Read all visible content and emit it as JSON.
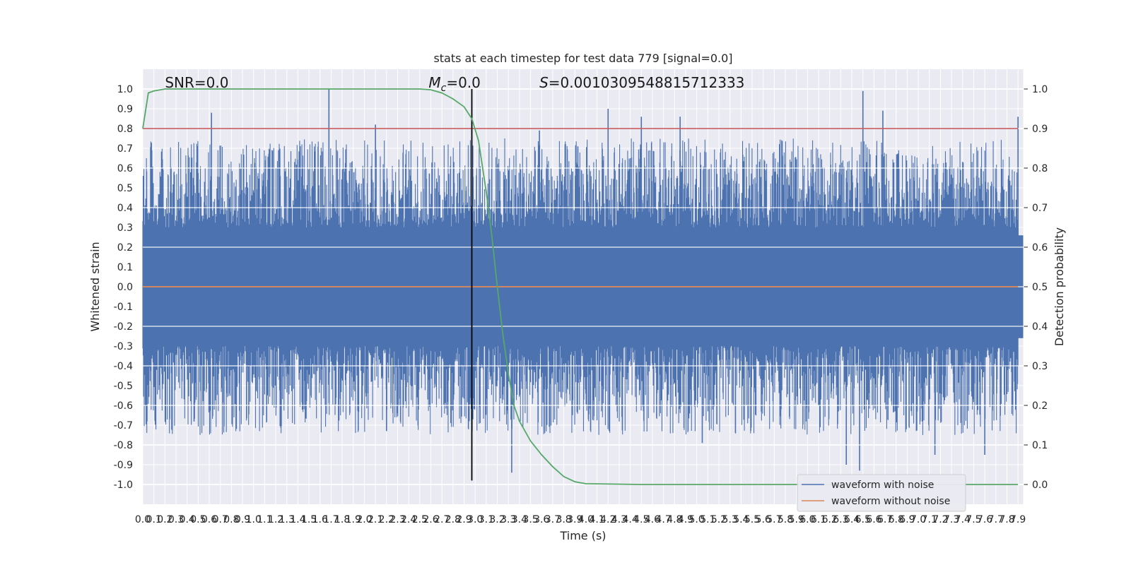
{
  "chart_data": {
    "type": "line",
    "title": "stats at each timestep for test data 779 [signal=0.0]",
    "xlabel": "Time (s)",
    "ylabel": "Whitened strain",
    "y2label": "Detection probability",
    "xlim": [
      0.0,
      7.95
    ],
    "ylim": [
      -1.1,
      1.1
    ],
    "y2lim": [
      -0.05,
      1.05
    ],
    "x_tick_step": 0.1,
    "x_tick_last": 7.9,
    "y_ticks": [
      1.0,
      0.9,
      0.8,
      0.7,
      0.6,
      0.5,
      0.4,
      0.3,
      0.2,
      0.1,
      0.0,
      -0.1,
      -0.2,
      -0.3,
      -0.4,
      -0.5,
      -0.6,
      -0.7,
      -0.8,
      -0.9,
      -1.0
    ],
    "y2_ticks": [
      1.0,
      0.9,
      0.8,
      0.7,
      0.6,
      0.5,
      0.4,
      0.3,
      0.2,
      0.1,
      0.0
    ],
    "grid": true,
    "legend_position": "bottom-right",
    "annotations": [
      {
        "text": "SNR=0.0",
        "x": 0.2
      },
      {
        "text_var": "M",
        "text_sub": "c",
        "text_rest": "=0.0",
        "x": 2.58
      },
      {
        "text_var": "S",
        "text_rest": "=0.001030954881571233 3",
        "x": 3.58
      }
    ],
    "vertical_marker": {
      "x": 2.97,
      "y_from": -0.98,
      "y_to": 1.0,
      "color": "#000000"
    },
    "threshold_line": {
      "y2": 0.9,
      "color": "#c44e52"
    },
    "series": [
      {
        "name": "waveform with noise",
        "color": "#4c72b0",
        "kind": "noise",
        "upper_typical": 0.3,
        "lower_typical": -0.3,
        "peaks_up": [
          [
            0.62,
            0.88
          ],
          [
            1.68,
            1.0
          ],
          [
            2.1,
            0.82
          ],
          [
            3.58,
            0.79
          ],
          [
            4.2,
            0.9
          ],
          [
            4.5,
            0.86
          ],
          [
            4.85,
            0.86
          ],
          [
            6.5,
            0.99
          ],
          [
            6.68,
            0.89
          ],
          [
            7.9,
            0.86
          ]
        ],
        "peaks_down": [
          [
            3.33,
            -0.94
          ],
          [
            6.35,
            -0.9
          ],
          [
            6.47,
            -0.93
          ],
          [
            7.15,
            -0.85
          ],
          [
            7.6,
            -0.85
          ],
          [
            5.05,
            -0.79
          ],
          [
            2.2,
            -0.73
          ]
        ]
      },
      {
        "name": "waveform without noise",
        "color": "#dd8452",
        "values_const": 0.0
      },
      {
        "name": "detection probability",
        "color": "#55a868",
        "axis": "right",
        "x": [
          0.0,
          0.05,
          0.1,
          0.2,
          0.5,
          1.0,
          1.5,
          2.0,
          2.5,
          2.6,
          2.7,
          2.8,
          2.9,
          2.97,
          3.03,
          3.1,
          3.15,
          3.2,
          3.25,
          3.3,
          3.35,
          3.4,
          3.5,
          3.6,
          3.7,
          3.8,
          3.9,
          4.0,
          4.5,
          5.0,
          6.0,
          7.0,
          7.9
        ],
        "values": [
          0.9,
          0.99,
          0.995,
          1.0,
          1.0,
          1.0,
          1.0,
          1.0,
          1.0,
          0.998,
          0.99,
          0.975,
          0.955,
          0.925,
          0.87,
          0.74,
          0.63,
          0.5,
          0.38,
          0.28,
          0.2,
          0.16,
          0.11,
          0.075,
          0.045,
          0.02,
          0.007,
          0.002,
          0.0,
          0.0,
          0.0,
          0.0,
          0.0
        ]
      }
    ]
  }
}
